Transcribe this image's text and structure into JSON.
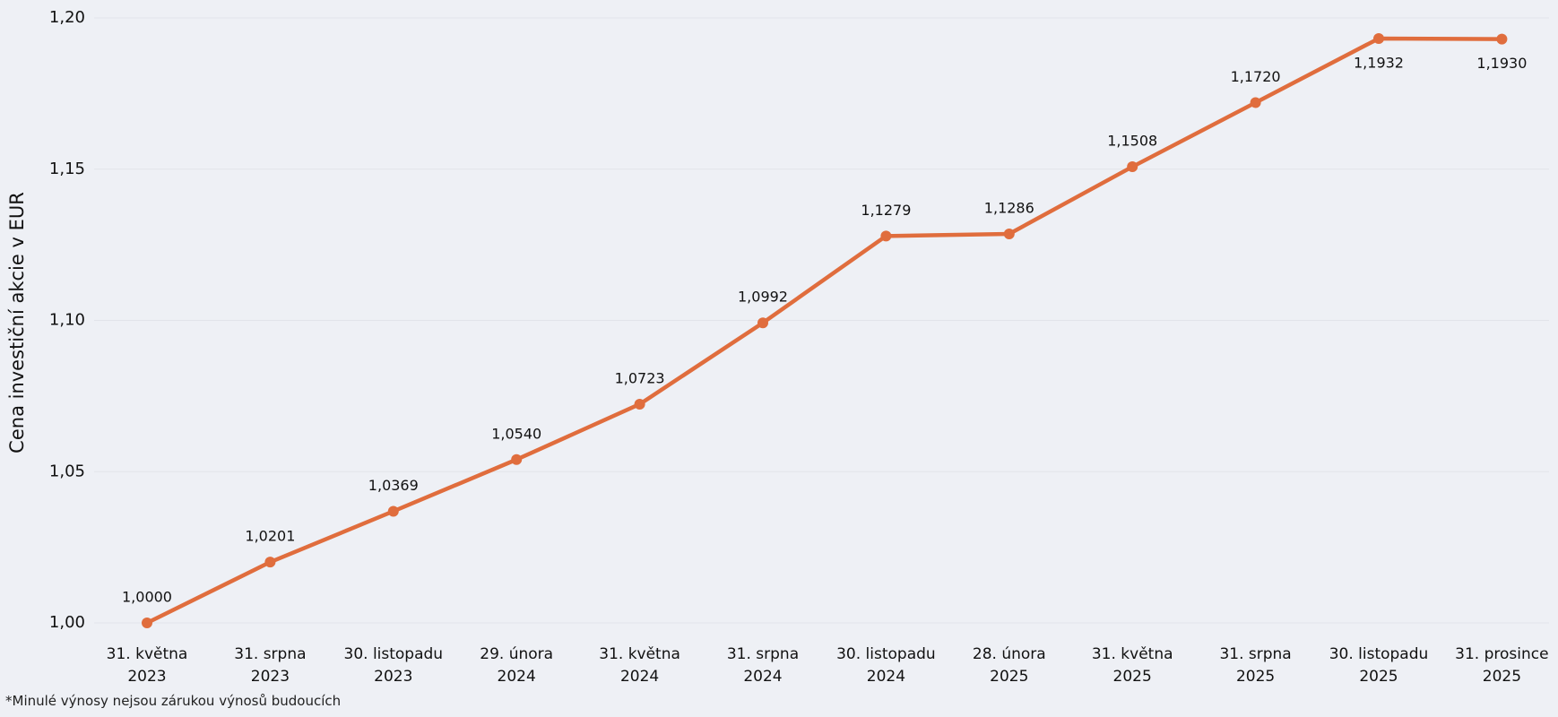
{
  "chart_data": {
    "type": "line",
    "y_label": "Cena investiční akcie v EUR",
    "footnote": "*Minulé výnosy nejsou zárukou výnosů budoucích",
    "categories": [
      "31. května\n2023",
      "31. srpna\n2023",
      "30. listopadu\n2023",
      "29. února\n2024",
      "31. května\n2024",
      "31. srpna\n2024",
      "30. listopadu\n2024",
      "28. února\n2025",
      "31. května\n2025",
      "31. srpna\n2025",
      "30. listopadu\n2025",
      "31. prosince\n2025"
    ],
    "series": [
      {
        "color": "#e06d3d",
        "values": [
          1.0,
          1.0201,
          1.0369,
          1.054,
          1.0723,
          1.0992,
          1.1279,
          1.1286,
          1.1508,
          1.172,
          1.1932,
          1.193
        ],
        "value_labels": [
          "1,0000",
          "1,0201",
          "1,0369",
          "1,0540",
          "1,0723",
          "1,0992",
          "1,1279",
          "1,1286",
          "1,1508",
          "1,1720",
          "1,1932",
          "1,1930"
        ]
      }
    ],
    "ylim": [
      1.0,
      1.2
    ],
    "yticks": [
      {
        "value": 1.0,
        "label": "1,00"
      },
      {
        "value": 1.05,
        "label": "1,05"
      },
      {
        "value": 1.1,
        "label": "1,10"
      },
      {
        "value": 1.15,
        "label": "1,15"
      },
      {
        "value": 1.2,
        "label": "1,20"
      }
    ],
    "grid": true
  }
}
